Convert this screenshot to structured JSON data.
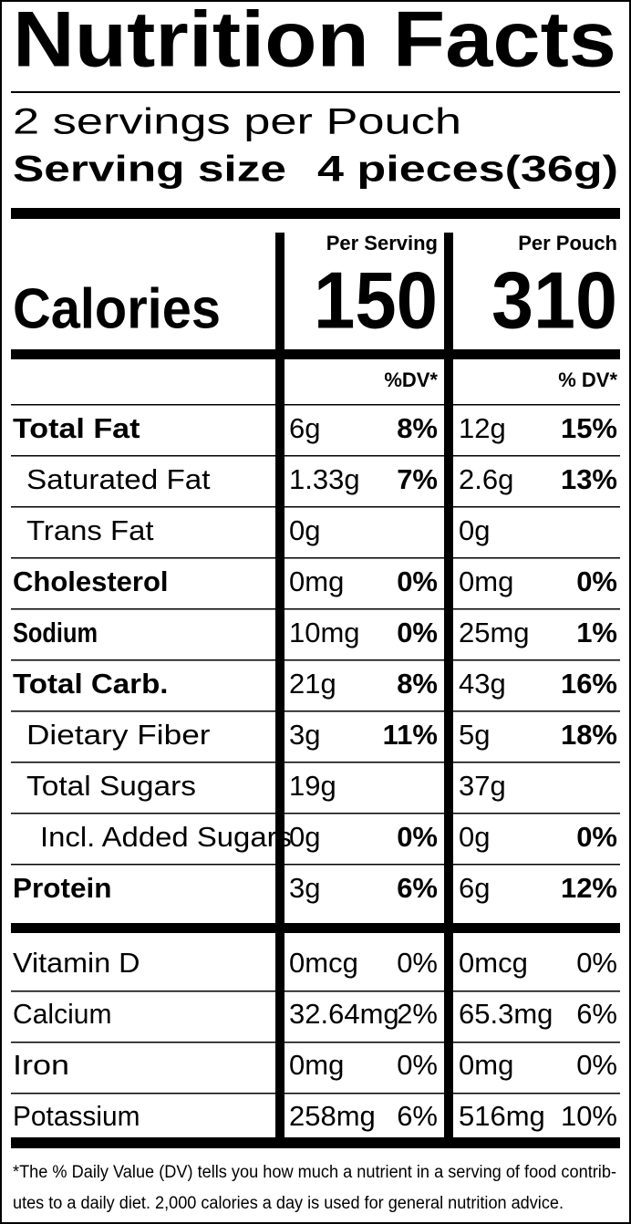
{
  "title": "Nutrition Facts",
  "servings": "2 servings per Pouch",
  "serving_size": {
    "label": "Serving size",
    "value": "4 pieces(36g)"
  },
  "calories": {
    "label": "Calories",
    "columns": [
      {
        "header": "Per Serving",
        "value": "150",
        "dv_header": "%DV*"
      },
      {
        "header": "Per Pouch",
        "value": "310",
        "dv_header": "% DV*"
      }
    ]
  },
  "nutrients": [
    {
      "name": "Total Fat",
      "serving": {
        "amount": "6g",
        "dv": "8%"
      },
      "pouch": {
        "amount": "12g",
        "dv": "15%"
      }
    },
    {
      "name": "Saturated Fat",
      "serving": {
        "amount": "1.33g",
        "dv": "7%"
      },
      "pouch": {
        "amount": "2.6g",
        "dv": "13%"
      }
    },
    {
      "name": "Trans Fat",
      "serving": {
        "amount": "0g"
      },
      "pouch": {
        "amount": "0g"
      }
    },
    {
      "name": "Cholesterol",
      "serving": {
        "amount": "0mg",
        "dv": "0%"
      },
      "pouch": {
        "amount": "0mg",
        "dv": "0%"
      }
    },
    {
      "name": "Sodium",
      "serving": {
        "amount": "10mg",
        "dv": "0%"
      },
      "pouch": {
        "amount": "25mg",
        "dv": "1%"
      }
    },
    {
      "name": "Total Carb.",
      "serving": {
        "amount": "21g",
        "dv": "8%"
      },
      "pouch": {
        "amount": "43g",
        "dv": "16%"
      }
    },
    {
      "name": "Dietary Fiber",
      "serving": {
        "amount": "3g",
        "dv": "11%"
      },
      "pouch": {
        "amount": "5g",
        "dv": "18%"
      }
    },
    {
      "name": "Total Sugars",
      "serving": {
        "amount": "19g"
      },
      "pouch": {
        "amount": "37g"
      }
    },
    {
      "name": "Incl. Added Sugars",
      "serving": {
        "amount": "0g",
        "dv": "0%"
      },
      "pouch": {
        "amount": "0g",
        "dv": "0%"
      }
    },
    {
      "name": "Protein",
      "serving": {
        "amount": "3g",
        "dv": "6%"
      },
      "pouch": {
        "amount": "6g",
        "dv": "12%"
      }
    }
  ],
  "vitamins": [
    {
      "name": "Vitamin D",
      "serving": {
        "amount": "0mcg",
        "dv": "0%"
      },
      "pouch": {
        "amount": "0mcg",
        "dv": "0%"
      }
    },
    {
      "name": "Calcium",
      "serving": {
        "amount": "32.64mg",
        "dv": "2%"
      },
      "pouch": {
        "amount": "65.3mg",
        "dv": "6%"
      }
    },
    {
      "name": "Iron",
      "serving": {
        "amount": "0mg",
        "dv": "0%"
      },
      "pouch": {
        "amount": "0mg",
        "dv": "0%"
      }
    },
    {
      "name": "Potassium",
      "serving": {
        "amount": "258mg",
        "dv": "6%"
      },
      "pouch": {
        "amount": "516mg",
        "dv": "10%"
      }
    }
  ],
  "footnote": [
    "*The % Daily Value (DV) tells you how much a nutrient in a serving of food contrib-",
    "utes to a daily diet. 2,000 calories a day is used for general nutrition advice."
  ]
}
